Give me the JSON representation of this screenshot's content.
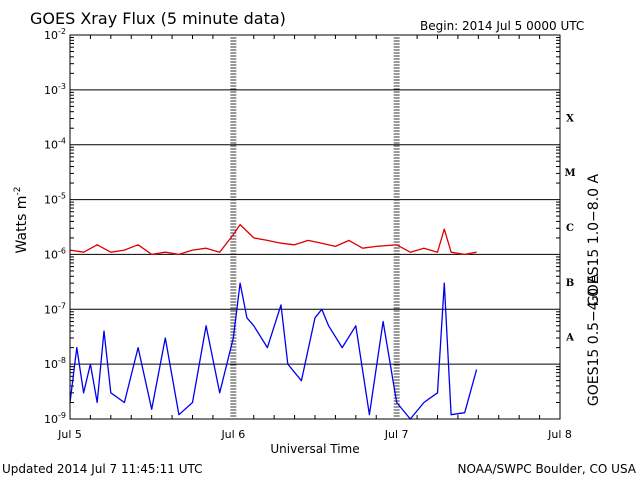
{
  "header": {
    "title": "GOES Xray Flux (5 minute data)",
    "begin": "Begin:  2014 Jul 5 0000 UTC"
  },
  "footer": {
    "updated": "Updated 2014 Jul  7 11:45:11 UTC",
    "credit": "NOAA/SWPC Boulder, CO USA"
  },
  "colors": {
    "long": "#dd0000",
    "short": "#0000ee",
    "axis": "#000000"
  },
  "chart_data": {
    "type": "line",
    "title": "GOES Xray Flux (5 minute data)",
    "xlabel": "Universal Time",
    "ylabel": "Watts m",
    "ylabel_sup": "-2",
    "y_scale": "log",
    "ylim": [
      1e-09,
      0.01
    ],
    "xlim": [
      "2014-07-05 00:00",
      "2014-07-08 00:00"
    ],
    "x_ticks": [
      "2014-07-05",
      "2014-07-06",
      "2014-07-07",
      "2014-07-08"
    ],
    "x_tick_labels": [
      "Jul 5",
      "Jul 6",
      "Jul 7",
      "Jul 8"
    ],
    "y_tick_labels": [
      {
        "base": "10",
        "exp": "-9"
      },
      {
        "base": "10",
        "exp": "-8"
      },
      {
        "base": "10",
        "exp": "-7"
      },
      {
        "base": "10",
        "exp": "-6"
      },
      {
        "base": "10",
        "exp": "-5"
      },
      {
        "base": "10",
        "exp": "-4"
      },
      {
        "base": "10",
        "exp": "-3"
      },
      {
        "base": "10",
        "exp": "-2"
      }
    ],
    "flare_classes": [
      "A",
      "B",
      "C",
      "M",
      "X"
    ],
    "grid": "horizontal lines at each decade",
    "series": [
      {
        "name": "GOES15 1.0−8.0 A",
        "x": [
          "2014-07-05 00:00",
          "2014-07-05 02:00",
          "2014-07-05 04:00",
          "2014-07-05 06:00",
          "2014-07-05 08:00",
          "2014-07-05 10:00",
          "2014-07-05 12:00",
          "2014-07-05 14:00",
          "2014-07-05 16:00",
          "2014-07-05 18:00",
          "2014-07-05 20:00",
          "2014-07-05 22:00",
          "2014-07-06 00:00",
          "2014-07-06 01:00",
          "2014-07-06 03:00",
          "2014-07-06 05:00",
          "2014-07-06 07:00",
          "2014-07-06 09:00",
          "2014-07-06 11:00",
          "2014-07-06 13:00",
          "2014-07-06 15:00",
          "2014-07-06 17:00",
          "2014-07-06 19:00",
          "2014-07-06 21:00",
          "2014-07-07 00:00",
          "2014-07-07 02:00",
          "2014-07-07 04:00",
          "2014-07-07 06:00",
          "2014-07-07 07:00",
          "2014-07-07 08:00",
          "2014-07-07 10:00",
          "2014-07-07 11:45"
        ],
        "y": [
          1.2e-06,
          1.1e-06,
          1.5e-06,
          1.1e-06,
          1.2e-06,
          1.5e-06,
          1e-06,
          1.1e-06,
          1e-06,
          1.2e-06,
          1.3e-06,
          1.1e-06,
          2.3e-06,
          3.5e-06,
          2e-06,
          1.8e-06,
          1.6e-06,
          1.5e-06,
          1.8e-06,
          1.6e-06,
          1.4e-06,
          1.8e-06,
          1.3e-06,
          1.4e-06,
          1.5e-06,
          1.1e-06,
          1.3e-06,
          1.1e-06,
          2.9e-06,
          1.1e-06,
          1e-06,
          1.1e-06
        ]
      },
      {
        "name": "GOES15 0.5−4.0 A",
        "x": [
          "2014-07-05 00:00",
          "2014-07-05 01:00",
          "2014-07-05 02:00",
          "2014-07-05 03:00",
          "2014-07-05 04:00",
          "2014-07-05 05:00",
          "2014-07-05 06:00",
          "2014-07-05 08:00",
          "2014-07-05 10:00",
          "2014-07-05 12:00",
          "2014-07-05 14:00",
          "2014-07-05 16:00",
          "2014-07-05 18:00",
          "2014-07-05 20:00",
          "2014-07-05 22:00",
          "2014-07-06 00:00",
          "2014-07-06 01:00",
          "2014-07-06 02:00",
          "2014-07-06 03:00",
          "2014-07-06 05:00",
          "2014-07-06 07:00",
          "2014-07-06 08:00",
          "2014-07-06 10:00",
          "2014-07-06 12:00",
          "2014-07-06 13:00",
          "2014-07-06 14:00",
          "2014-07-06 16:00",
          "2014-07-06 18:00",
          "2014-07-06 20:00",
          "2014-07-06 22:00",
          "2014-07-07 00:00",
          "2014-07-07 02:00",
          "2014-07-07 04:00",
          "2014-07-07 06:00",
          "2014-07-07 07:00",
          "2014-07-07 08:00",
          "2014-07-07 10:00",
          "2014-07-07 11:45"
        ],
        "y": [
          2e-09,
          2e-08,
          3e-09,
          1e-08,
          2e-09,
          4e-08,
          3e-09,
          2e-09,
          2e-08,
          1.5e-09,
          3e-08,
          1.2e-09,
          2e-09,
          5e-08,
          3e-09,
          3e-08,
          3e-07,
          7e-08,
          5e-08,
          2e-08,
          1.2e-07,
          1e-08,
          5e-09,
          7e-08,
          1e-07,
          5e-08,
          2e-08,
          5e-08,
          1.2e-09,
          6e-08,
          2e-09,
          1e-09,
          2e-09,
          3e-09,
          3e-07,
          1.2e-09,
          1.3e-09,
          8e-09
        ]
      }
    ],
    "legend": "right side, vertical text"
  }
}
